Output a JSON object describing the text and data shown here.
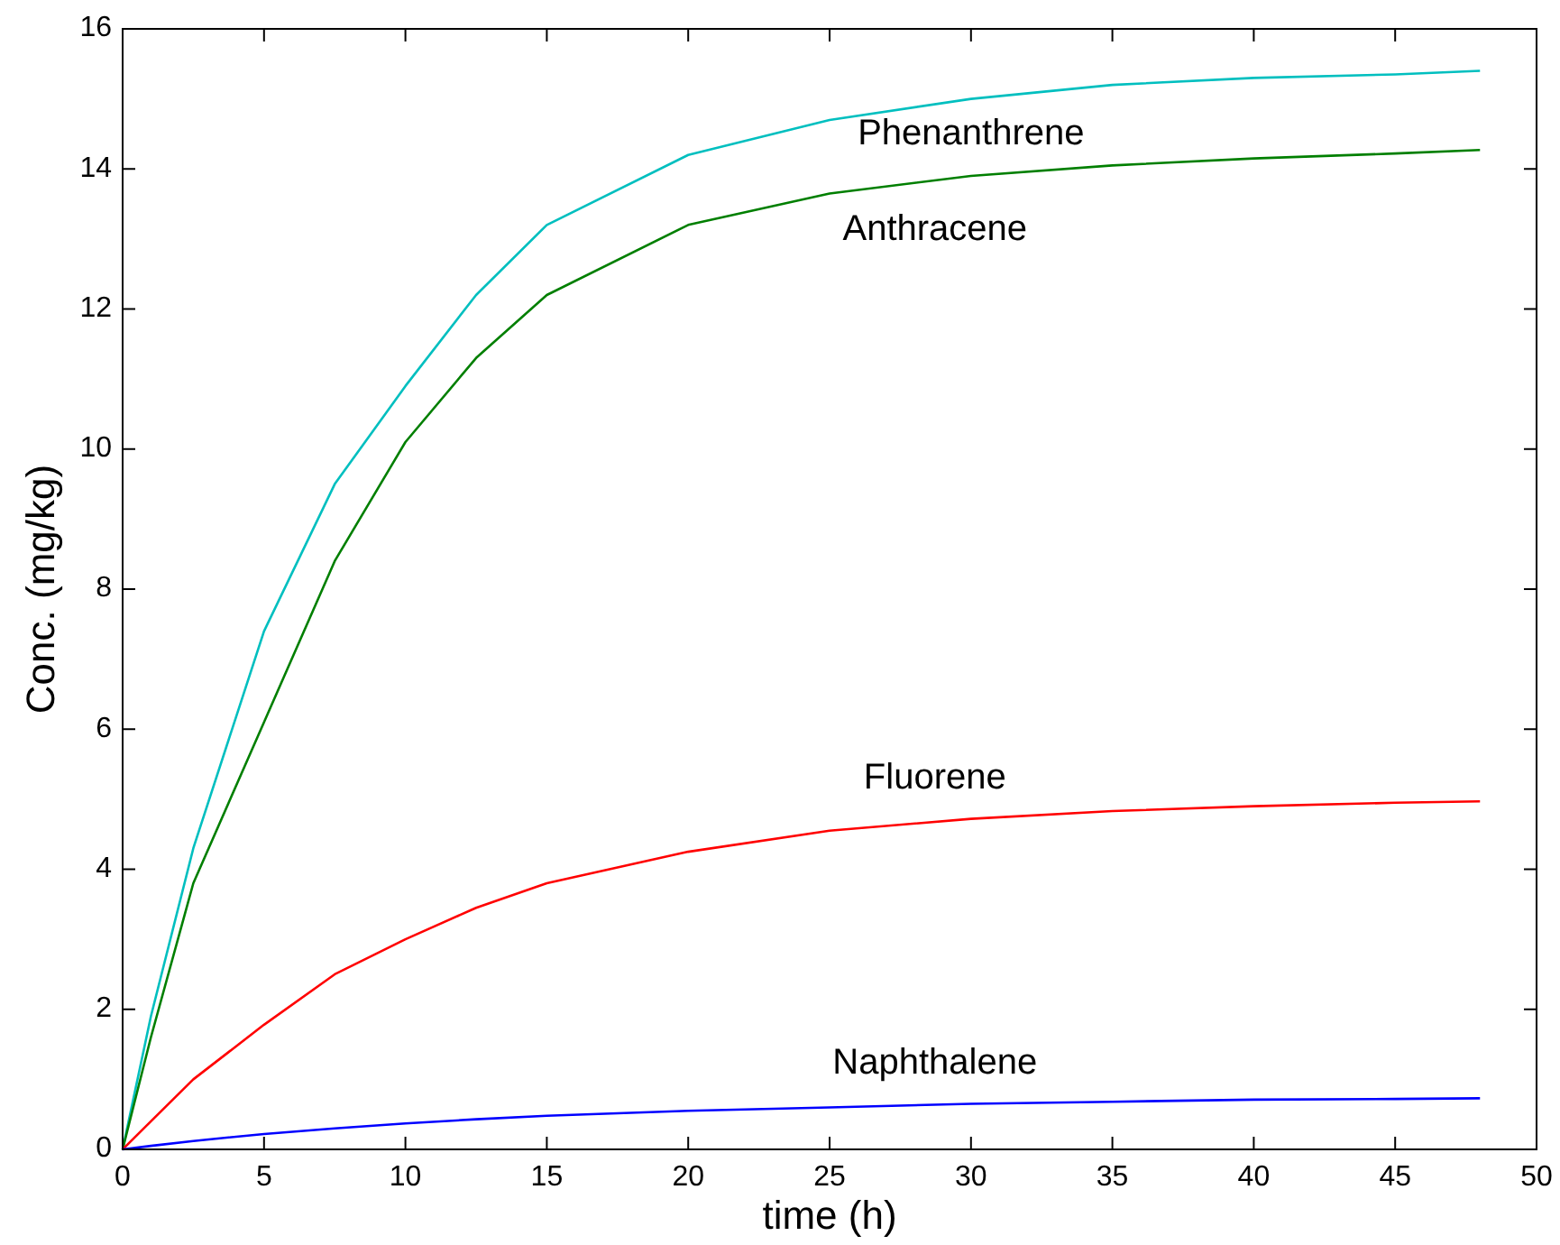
{
  "chart_data": {
    "type": "line",
    "xlabel": "time (h)",
    "ylabel": "Conc. (mg/kg)",
    "x": [
      0,
      1,
      2.5,
      5,
      7.5,
      10,
      12.5,
      15,
      20,
      25,
      30,
      35,
      40,
      45,
      48
    ],
    "xlim": [
      0,
      50
    ],
    "xticks": [
      0,
      5,
      10,
      15,
      20,
      25,
      30,
      35,
      40,
      45,
      50
    ],
    "ylim": [
      0,
      16
    ],
    "yticks": [
      0,
      2,
      4,
      6,
      8,
      10,
      12,
      14,
      16
    ],
    "marker": "none",
    "line_style": "solid",
    "series": [
      {
        "name": "Phenanthrene",
        "color": "#00bfbf",
        "values": [
          0,
          1.9,
          4.3,
          7.4,
          9.5,
          10.9,
          12.2,
          13.2,
          14.2,
          14.7,
          15.0,
          15.2,
          15.3,
          15.35,
          15.4
        ]
      },
      {
        "name": "Anthracene",
        "color": "#007f00",
        "values": [
          0,
          1.6,
          3.8,
          6.1,
          8.4,
          10.1,
          11.3,
          12.2,
          13.2,
          13.65,
          13.9,
          14.05,
          14.15,
          14.22,
          14.27
        ]
      },
      {
        "name": "Fluorene",
        "color": "#ff0000",
        "values": [
          0,
          0.4,
          1.0,
          1.78,
          2.5,
          3.0,
          3.45,
          3.8,
          4.25,
          4.55,
          4.72,
          4.83,
          4.9,
          4.95,
          4.97
        ]
      },
      {
        "name": "Naphthalene",
        "color": "#0000ff",
        "values": [
          0,
          0.05,
          0.12,
          0.22,
          0.3,
          0.37,
          0.43,
          0.48,
          0.55,
          0.6,
          0.65,
          0.68,
          0.71,
          0.72,
          0.73
        ]
      }
    ]
  }
}
